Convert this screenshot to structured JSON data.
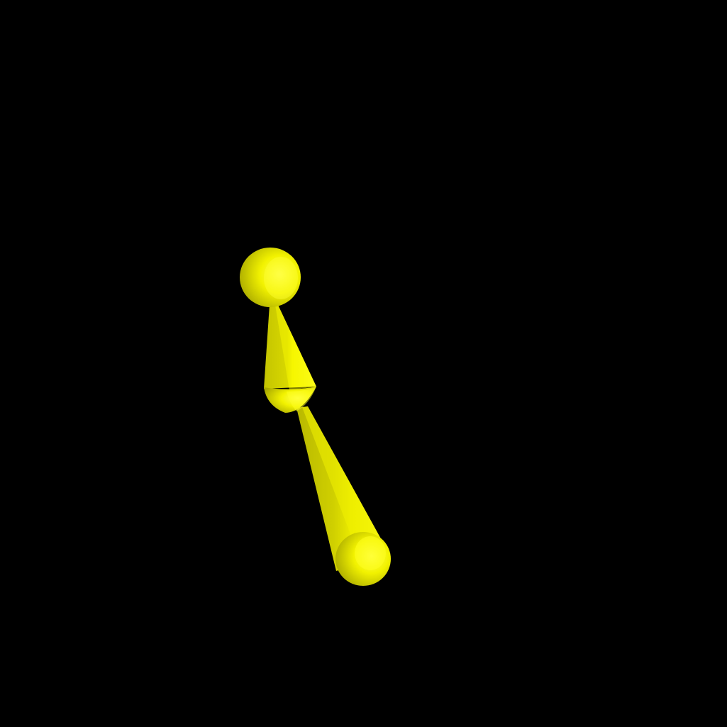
{
  "scene": {
    "background_color": "#000000",
    "object_color": "#ffff00",
    "object_shade_color": "#b3b300",
    "object_highlight_color": "#ffff66",
    "light_direction": "right",
    "objects": [
      {
        "name": "top-sphere-joint",
        "shape": "sphere"
      },
      {
        "name": "upper-cone-segment",
        "shape": "cone"
      },
      {
        "name": "middle-joint",
        "shape": "sphere"
      },
      {
        "name": "lower-cone-segment",
        "shape": "cone"
      },
      {
        "name": "bottom-sphere-joint",
        "shape": "sphere"
      }
    ]
  }
}
